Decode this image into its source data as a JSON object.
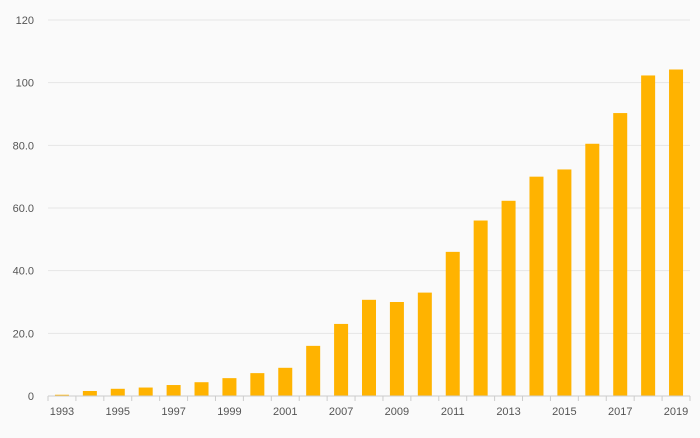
{
  "chart_data": {
    "type": "bar",
    "title": "",
    "xlabel": "",
    "ylabel": "",
    "categories": [
      "1993",
      "1994",
      "1995",
      "1996",
      "1997",
      "1998",
      "1999",
      "2000",
      "2001",
      "2002",
      "2007",
      "2008",
      "2009",
      "2010",
      "2011",
      "2012",
      "2013",
      "2014",
      "2015",
      "2016",
      "2017",
      "2018",
      "2019"
    ],
    "x_tick_labels": [
      "1993",
      "",
      "1995",
      "",
      "1997",
      "",
      "1999",
      "",
      "2001",
      "",
      "2007",
      "",
      "2009",
      "",
      "2011",
      "",
      "2013",
      "",
      "2015",
      "",
      "2017",
      "",
      "2019"
    ],
    "values": [
      0.4,
      1.6,
      2.3,
      2.7,
      3.5,
      4.4,
      5.7,
      7.3,
      9.0,
      16.0,
      23.0,
      30.7,
      30.0,
      33.0,
      46.0,
      56.0,
      62.3,
      70.0,
      72.3,
      80.5,
      90.3,
      102.3,
      104.2
    ],
    "ylim": [
      0,
      120
    ],
    "y_ticks": [
      0,
      20,
      40,
      60,
      80,
      100,
      120
    ],
    "y_tick_labels": [
      "0",
      "20.0",
      "40.0",
      "60.0",
      "80.0",
      "100",
      "120"
    ],
    "grid": true,
    "bar_color": "#FFB300",
    "grid_color": "#e6e6e6",
    "axis_color": "#cccccc"
  }
}
